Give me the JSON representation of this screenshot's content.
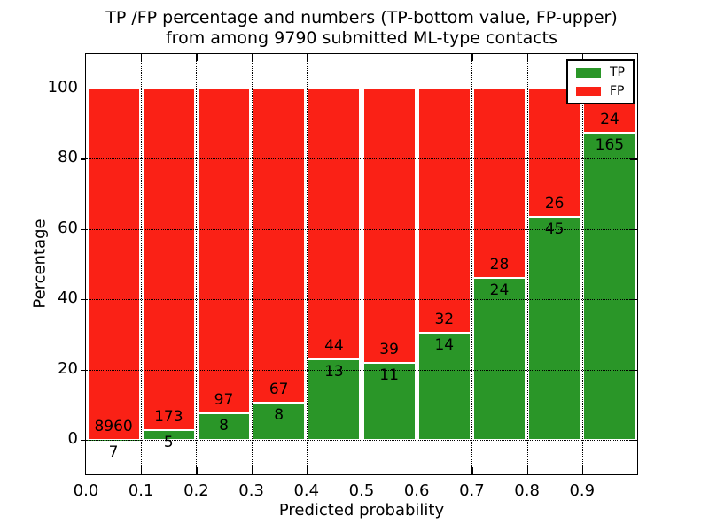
{
  "title": {
    "line1": "TP /FP percentage and numbers (TP-bottom value, FP-upper)",
    "line2": "from among 9790 submitted ML-type contacts"
  },
  "chart_data": {
    "type": "bar",
    "stacked": true,
    "normalized_to_percent": true,
    "title": "TP /FP percentage and numbers (TP-bottom value, FP-upper) from among 9790 submitted ML-type contacts",
    "xlabel": "Predicted probability",
    "ylabel": "Percentage",
    "total_submitted_contacts": 9790,
    "bin_width": 0.1,
    "x_bin_starts": [
      0.0,
      0.1,
      0.2,
      0.3,
      0.4,
      0.5,
      0.6,
      0.7,
      0.8,
      0.9
    ],
    "x_tick_labels": [
      "0.0",
      "0.1",
      "0.2",
      "0.3",
      "0.4",
      "0.5",
      "0.6",
      "0.7",
      "0.8",
      "0.9"
    ],
    "y_ticks": [
      0,
      20,
      40,
      60,
      80,
      100
    ],
    "xlim": [
      0,
      1
    ],
    "ylim": [
      -10,
      110
    ],
    "grid": "dotted",
    "legend_position": "upper right",
    "series": [
      {
        "name": "TP",
        "color": "#2a9628",
        "counts": [
          7,
          5,
          8,
          8,
          13,
          11,
          14,
          24,
          45,
          165
        ],
        "percent": [
          0.08,
          2.81,
          7.62,
          10.67,
          22.81,
          22.0,
          30.43,
          46.15,
          63.38,
          87.3
        ]
      },
      {
        "name": "FP",
        "color": "#fa2116",
        "counts": [
          8960,
          173,
          97,
          67,
          44,
          39,
          32,
          28,
          26,
          24
        ],
        "percent": [
          99.92,
          97.19,
          92.38,
          89.33,
          77.19,
          78.0,
          69.57,
          53.85,
          36.62,
          12.7
        ]
      }
    ]
  }
}
